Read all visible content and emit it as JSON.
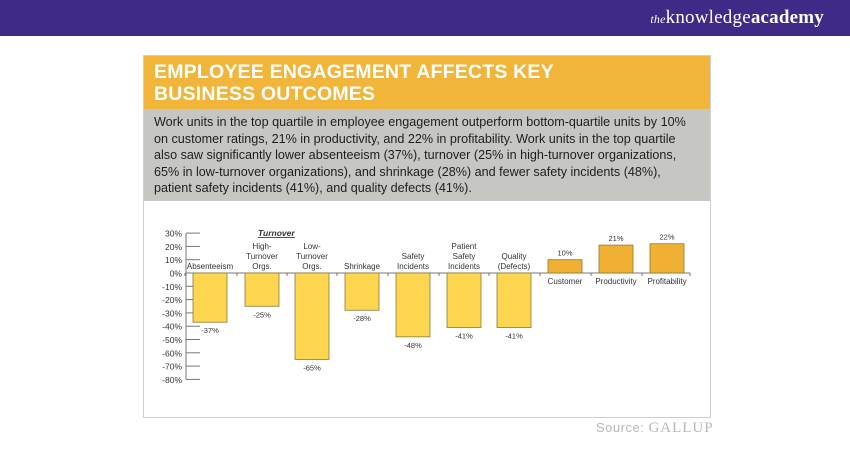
{
  "header": {
    "logo_text": "theknowledgeacademy",
    "bg_color": "#3f2b87"
  },
  "card": {
    "title": "EMPLOYEE ENGAGEMENT AFFECTS KEY BUSINESS OUTCOMES",
    "description": "Work units in the top quartile in employee engagement outperform bottom-quartile units by 10% on customer ratings, 21% in productivity, and 22% in profitability. Work units in the top quartile also saw significantly lower absenteeism (37%), turnover (25% in high-turnover organizations, 65% in low-turnover organizations), and shrinkage (28%) and fewer safety incidents (48%), patient safety incidents (41%), and quality defects (41%)."
  },
  "source": {
    "label": "Source:",
    "brand": "GALLUP"
  },
  "chart_data": {
    "type": "bar",
    "group_label": "Turnover",
    "categories": [
      "Absenteeism",
      "High-Turnover Orgs.",
      "Low-Turnover Orgs.",
      "Shrinkage",
      "Safety Incidents",
      "Patient Safety Incidents",
      "Quality (Defects)",
      "Customer",
      "Productivity",
      "Profitability"
    ],
    "values": [
      -37,
      -25,
      -65,
      -28,
      -48,
      -41,
      -41,
      10,
      21,
      22
    ],
    "data_labels": [
      "-37%",
      "-25%",
      "-65%",
      "-28%",
      "-48%",
      "-41%",
      "-41%",
      "10%",
      "21%",
      "22%"
    ],
    "yticks": [
      "30%",
      "20%",
      "10%",
      "0%",
      "-10%",
      "-20%",
      "-30%",
      "-40%",
      "-50%",
      "-60%",
      "-70%",
      "-80%"
    ],
    "ylim": [
      -80,
      30
    ],
    "negative_color": "#fdd54e",
    "positive_color": "#f0b033",
    "grid": false
  }
}
